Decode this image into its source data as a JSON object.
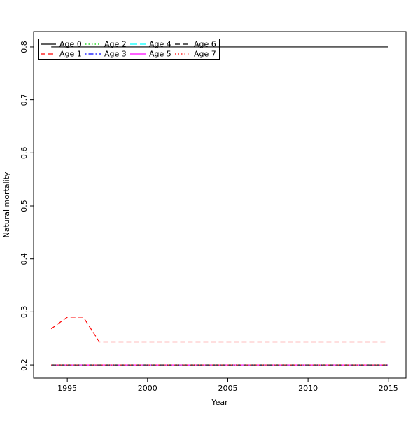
{
  "figure": {
    "background": "#ffffff"
  },
  "chart_data": {
    "type": "line",
    "title": "",
    "xlabel": "Year",
    "ylabel": "Natural mortality",
    "xlim": [
      1992.9,
      2016.1
    ],
    "ylim": [
      0.175,
      0.829
    ],
    "x_ticks": [
      1995,
      2000,
      2005,
      2010,
      2015
    ],
    "y_ticks": [
      0.2,
      0.3,
      0.4,
      0.5,
      0.6,
      0.7,
      0.8
    ],
    "grid": false,
    "box": true,
    "legend_position": "top-left",
    "legend_ncol": 4,
    "x": [
      1994,
      1995,
      1996,
      1997,
      1998,
      1999,
      2000,
      2001,
      2002,
      2003,
      2004,
      2005,
      2006,
      2007,
      2008,
      2009,
      2010,
      2011,
      2012,
      2013,
      2014,
      2015
    ],
    "series": [
      {
        "name": "Age 0",
        "color": "#000000",
        "linestyle": "solid",
        "values": [
          0.8,
          0.8,
          0.8,
          0.8,
          0.8,
          0.8,
          0.8,
          0.8,
          0.8,
          0.8,
          0.8,
          0.8,
          0.8,
          0.8,
          0.8,
          0.8,
          0.8,
          0.8,
          0.8,
          0.8,
          0.8,
          0.8
        ]
      },
      {
        "name": "Age 1",
        "color": "#FF0000",
        "linestyle": "dashed",
        "values": [
          0.268,
          0.29,
          0.29,
          0.243,
          0.243,
          0.243,
          0.243,
          0.243,
          0.243,
          0.243,
          0.243,
          0.243,
          0.243,
          0.243,
          0.243,
          0.243,
          0.243,
          0.243,
          0.243,
          0.243,
          0.243,
          0.243
        ]
      },
      {
        "name": "Age 2",
        "color": "#00CD00",
        "linestyle": "dotted",
        "values": [
          0.2,
          0.2,
          0.2,
          0.2,
          0.2,
          0.2,
          0.2,
          0.2,
          0.2,
          0.2,
          0.2,
          0.2,
          0.2,
          0.2,
          0.2,
          0.2,
          0.2,
          0.2,
          0.2,
          0.2,
          0.2,
          0.2
        ]
      },
      {
        "name": "Age 3",
        "color": "#0000FF",
        "linestyle": "dotdash",
        "values": [
          0.2,
          0.2,
          0.2,
          0.2,
          0.2,
          0.2,
          0.2,
          0.2,
          0.2,
          0.2,
          0.2,
          0.2,
          0.2,
          0.2,
          0.2,
          0.2,
          0.2,
          0.2,
          0.2,
          0.2,
          0.2,
          0.2
        ]
      },
      {
        "name": "Age 4",
        "color": "#00FFFF",
        "linestyle": "longdash",
        "values": [
          0.2,
          0.2,
          0.2,
          0.2,
          0.2,
          0.2,
          0.2,
          0.2,
          0.2,
          0.2,
          0.2,
          0.2,
          0.2,
          0.2,
          0.2,
          0.2,
          0.2,
          0.2,
          0.2,
          0.2,
          0.2,
          0.2
        ]
      },
      {
        "name": "Age 5",
        "color": "#FF00FF",
        "linestyle": "solid",
        "values": [
          0.2,
          0.2,
          0.2,
          0.2,
          0.2,
          0.2,
          0.2,
          0.2,
          0.2,
          0.2,
          0.2,
          0.2,
          0.2,
          0.2,
          0.2,
          0.2,
          0.2,
          0.2,
          0.2,
          0.2,
          0.2,
          0.2
        ]
      },
      {
        "name": "Age 6",
        "color": "#000000",
        "linestyle": "dashed",
        "values": [
          0.2,
          0.2,
          0.2,
          0.2,
          0.2,
          0.2,
          0.2,
          0.2,
          0.2,
          0.2,
          0.2,
          0.2,
          0.2,
          0.2,
          0.2,
          0.2,
          0.2,
          0.2,
          0.2,
          0.2,
          0.2,
          0.2
        ]
      },
      {
        "name": "Age 7",
        "color": "#FF0000",
        "linestyle": "dotted",
        "values": [
          0.2,
          0.2,
          0.2,
          0.2,
          0.2,
          0.2,
          0.2,
          0.2,
          0.2,
          0.2,
          0.2,
          0.2,
          0.2,
          0.2,
          0.2,
          0.2,
          0.2,
          0.2,
          0.2,
          0.2,
          0.2,
          0.2
        ]
      }
    ]
  }
}
